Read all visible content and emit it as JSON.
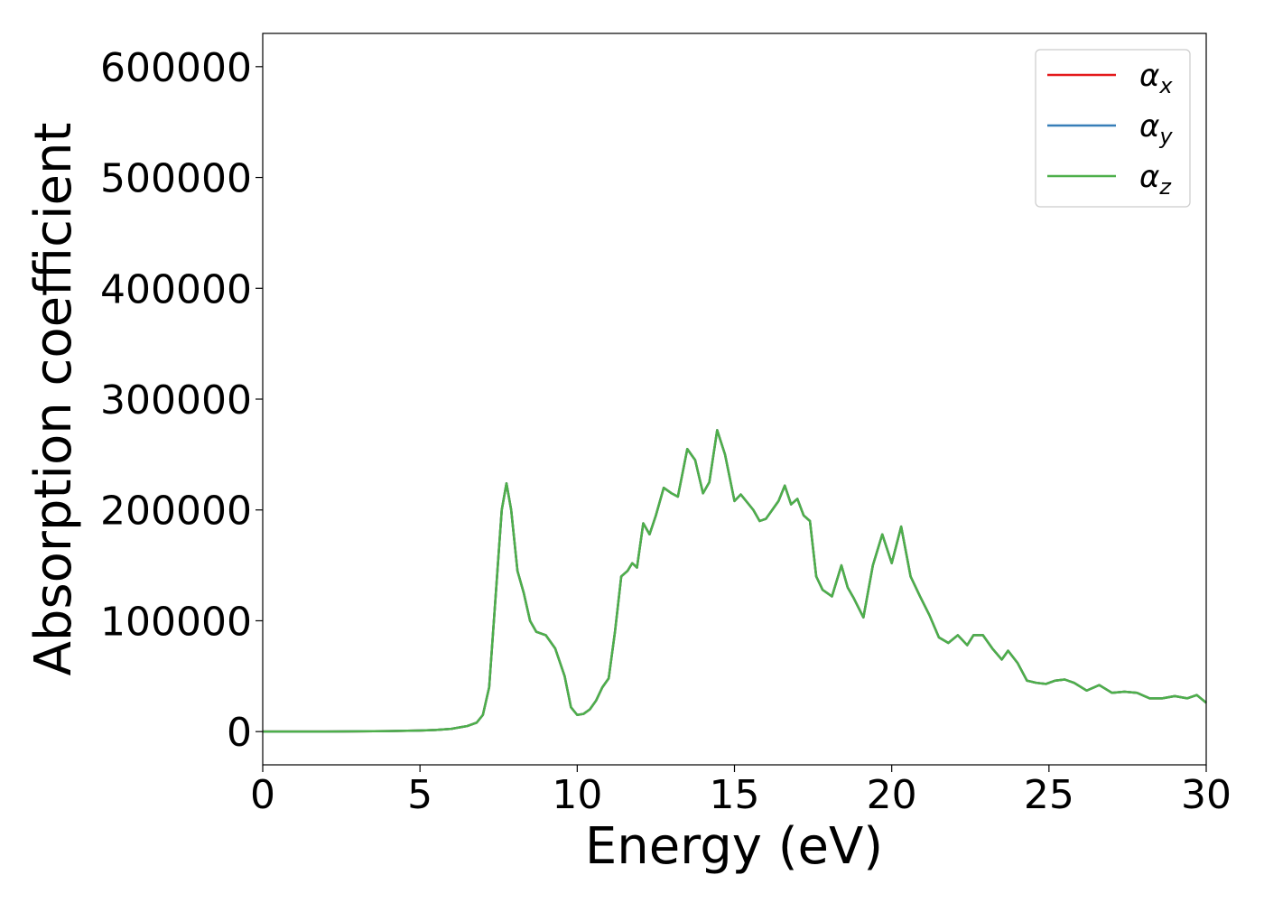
{
  "chart_data": {
    "type": "line",
    "title": "",
    "xlabel": "Energy (eV)",
    "ylabel": "Absorption coefficient",
    "xlim": [
      0,
      30
    ],
    "ylim": [
      -30000,
      630000
    ],
    "xticks": [
      0,
      5,
      10,
      15,
      20,
      25,
      30
    ],
    "xtick_labels": [
      "0",
      "5",
      "10",
      "15",
      "20",
      "25",
      "30"
    ],
    "yticks": [
      0,
      100000,
      200000,
      300000,
      400000,
      500000,
      600000
    ],
    "ytick_labels": [
      "0",
      "100000",
      "200000",
      "300000",
      "400000",
      "500000",
      "600000"
    ],
    "grid": false,
    "legend_position": "top-right",
    "series": [
      {
        "name": "α_x",
        "legend_main": "α",
        "legend_sub": "x",
        "color": "#e41a1c",
        "points": [
          [
            0,
            0
          ],
          [
            2,
            0
          ],
          [
            4,
            500
          ],
          [
            5,
            1000
          ],
          [
            5.5,
            1500
          ],
          [
            6,
            2500
          ],
          [
            6.5,
            5000
          ],
          [
            6.8,
            8000
          ],
          [
            7,
            15000
          ],
          [
            7.2,
            40000
          ],
          [
            7.4,
            120000
          ],
          [
            7.6,
            200000
          ],
          [
            7.75,
            224000
          ],
          [
            7.9,
            200000
          ],
          [
            8.1,
            145000
          ],
          [
            8.3,
            125000
          ],
          [
            8.5,
            100000
          ],
          [
            8.7,
            90000
          ],
          [
            9,
            87000
          ],
          [
            9.3,
            75000
          ],
          [
            9.6,
            50000
          ],
          [
            9.8,
            22000
          ],
          [
            10,
            15000
          ],
          [
            10.2,
            16000
          ],
          [
            10.4,
            20000
          ],
          [
            10.6,
            28000
          ],
          [
            10.8,
            40000
          ],
          [
            11,
            48000
          ],
          [
            11.2,
            90000
          ],
          [
            11.4,
            140000
          ],
          [
            11.6,
            145000
          ],
          [
            11.75,
            152000
          ],
          [
            11.9,
            148000
          ],
          [
            12.1,
            188000
          ],
          [
            12.3,
            178000
          ],
          [
            12.5,
            195000
          ],
          [
            12.75,
            220000
          ],
          [
            13,
            215000
          ],
          [
            13.2,
            212000
          ],
          [
            13.5,
            255000
          ],
          [
            13.75,
            245000
          ],
          [
            14,
            215000
          ],
          [
            14.2,
            225000
          ],
          [
            14.45,
            272000
          ],
          [
            14.7,
            250000
          ],
          [
            15,
            208000
          ],
          [
            15.2,
            214000
          ],
          [
            15.4,
            207000
          ],
          [
            15.6,
            200000
          ],
          [
            15.8,
            190000
          ],
          [
            16,
            192000
          ],
          [
            16.2,
            200000
          ],
          [
            16.4,
            208000
          ],
          [
            16.6,
            222000
          ],
          [
            16.8,
            205000
          ],
          [
            17,
            210000
          ],
          [
            17.2,
            195000
          ],
          [
            17.4,
            190000
          ],
          [
            17.6,
            140000
          ],
          [
            17.8,
            128000
          ],
          [
            18.1,
            122000
          ],
          [
            18.4,
            150000
          ],
          [
            18.6,
            130000
          ],
          [
            18.8,
            120000
          ],
          [
            19.1,
            103000
          ],
          [
            19.4,
            150000
          ],
          [
            19.7,
            178000
          ],
          [
            20,
            152000
          ],
          [
            20.3,
            185000
          ],
          [
            20.6,
            140000
          ],
          [
            20.9,
            122000
          ],
          [
            21.2,
            105000
          ],
          [
            21.5,
            85000
          ],
          [
            21.8,
            80000
          ],
          [
            22.1,
            87000
          ],
          [
            22.4,
            78000
          ],
          [
            22.6,
            87000
          ],
          [
            22.9,
            87000
          ],
          [
            23.2,
            75000
          ],
          [
            23.5,
            65000
          ],
          [
            23.7,
            73000
          ],
          [
            24,
            62000
          ],
          [
            24.3,
            46000
          ],
          [
            24.6,
            44000
          ],
          [
            24.9,
            43000
          ],
          [
            25.2,
            46000
          ],
          [
            25.5,
            47000
          ],
          [
            25.8,
            44000
          ],
          [
            26.2,
            37000
          ],
          [
            26.6,
            42000
          ],
          [
            27,
            35000
          ],
          [
            27.4,
            36000
          ],
          [
            27.8,
            35000
          ],
          [
            28.2,
            30000
          ],
          [
            28.6,
            30000
          ],
          [
            29,
            32000
          ],
          [
            29.4,
            30000
          ],
          [
            29.7,
            33000
          ],
          [
            30,
            26000
          ]
        ]
      },
      {
        "name": "α_y",
        "legend_main": "α",
        "legend_sub": "y",
        "color": "#377eb8",
        "points": [
          [
            0,
            0
          ],
          [
            2,
            0
          ],
          [
            4,
            500
          ],
          [
            5,
            1000
          ],
          [
            5.5,
            1500
          ],
          [
            6,
            2500
          ],
          [
            6.5,
            5000
          ],
          [
            6.8,
            8000
          ],
          [
            7,
            15000
          ],
          [
            7.2,
            40000
          ],
          [
            7.4,
            120000
          ],
          [
            7.6,
            200000
          ],
          [
            7.75,
            224000
          ],
          [
            7.9,
            200000
          ],
          [
            8.1,
            145000
          ],
          [
            8.3,
            125000
          ],
          [
            8.5,
            100000
          ],
          [
            8.7,
            90000
          ],
          [
            9,
            87000
          ],
          [
            9.3,
            75000
          ],
          [
            9.6,
            50000
          ],
          [
            9.8,
            22000
          ],
          [
            10,
            15000
          ],
          [
            10.2,
            16000
          ],
          [
            10.4,
            20000
          ],
          [
            10.6,
            28000
          ],
          [
            10.8,
            40000
          ],
          [
            11,
            48000
          ],
          [
            11.2,
            90000
          ],
          [
            11.4,
            140000
          ],
          [
            11.6,
            145000
          ],
          [
            11.75,
            152000
          ],
          [
            11.9,
            148000
          ],
          [
            12.1,
            188000
          ],
          [
            12.3,
            178000
          ],
          [
            12.5,
            195000
          ],
          [
            12.75,
            220000
          ],
          [
            13,
            215000
          ],
          [
            13.2,
            212000
          ],
          [
            13.5,
            255000
          ],
          [
            13.75,
            245000
          ],
          [
            14,
            215000
          ],
          [
            14.2,
            225000
          ],
          [
            14.45,
            272000
          ],
          [
            14.7,
            250000
          ],
          [
            15,
            208000
          ],
          [
            15.2,
            214000
          ],
          [
            15.4,
            207000
          ],
          [
            15.6,
            200000
          ],
          [
            15.8,
            190000
          ],
          [
            16,
            192000
          ],
          [
            16.2,
            200000
          ],
          [
            16.4,
            208000
          ],
          [
            16.6,
            222000
          ],
          [
            16.8,
            205000
          ],
          [
            17,
            210000
          ],
          [
            17.2,
            195000
          ],
          [
            17.4,
            190000
          ],
          [
            17.6,
            140000
          ],
          [
            17.8,
            128000
          ],
          [
            18.1,
            122000
          ],
          [
            18.4,
            150000
          ],
          [
            18.6,
            130000
          ],
          [
            18.8,
            120000
          ],
          [
            19.1,
            103000
          ],
          [
            19.4,
            150000
          ],
          [
            19.7,
            178000
          ],
          [
            20,
            152000
          ],
          [
            20.3,
            185000
          ],
          [
            20.6,
            140000
          ],
          [
            20.9,
            122000
          ],
          [
            21.2,
            105000
          ],
          [
            21.5,
            85000
          ],
          [
            21.8,
            80000
          ],
          [
            22.1,
            87000
          ],
          [
            22.4,
            78000
          ],
          [
            22.6,
            87000
          ],
          [
            22.9,
            87000
          ],
          [
            23.2,
            75000
          ],
          [
            23.5,
            65000
          ],
          [
            23.7,
            73000
          ],
          [
            24,
            62000
          ],
          [
            24.3,
            46000
          ],
          [
            24.6,
            44000
          ],
          [
            24.9,
            43000
          ],
          [
            25.2,
            46000
          ],
          [
            25.5,
            47000
          ],
          [
            25.8,
            44000
          ],
          [
            26.2,
            37000
          ],
          [
            26.6,
            42000
          ],
          [
            27,
            35000
          ],
          [
            27.4,
            36000
          ],
          [
            27.8,
            35000
          ],
          [
            28.2,
            30000
          ],
          [
            28.6,
            30000
          ],
          [
            29,
            32000
          ],
          [
            29.4,
            30000
          ],
          [
            29.7,
            33000
          ],
          [
            30,
            26000
          ]
        ]
      },
      {
        "name": "α_z",
        "legend_main": "α",
        "legend_sub": "z",
        "color": "#4daf4a",
        "points": [
          [
            0,
            0
          ],
          [
            2,
            0
          ],
          [
            4,
            500
          ],
          [
            5,
            1000
          ],
          [
            5.5,
            1500
          ],
          [
            6,
            2500
          ],
          [
            6.5,
            5000
          ],
          [
            6.8,
            8000
          ],
          [
            7,
            15000
          ],
          [
            7.2,
            40000
          ],
          [
            7.4,
            120000
          ],
          [
            7.6,
            200000
          ],
          [
            7.75,
            224000
          ],
          [
            7.9,
            200000
          ],
          [
            8.1,
            145000
          ],
          [
            8.3,
            125000
          ],
          [
            8.5,
            100000
          ],
          [
            8.7,
            90000
          ],
          [
            9,
            87000
          ],
          [
            9.3,
            75000
          ],
          [
            9.6,
            50000
          ],
          [
            9.8,
            22000
          ],
          [
            10,
            15000
          ],
          [
            10.2,
            16000
          ],
          [
            10.4,
            20000
          ],
          [
            10.6,
            28000
          ],
          [
            10.8,
            40000
          ],
          [
            11,
            48000
          ],
          [
            11.2,
            90000
          ],
          [
            11.4,
            140000
          ],
          [
            11.6,
            145000
          ],
          [
            11.75,
            152000
          ],
          [
            11.9,
            148000
          ],
          [
            12.1,
            188000
          ],
          [
            12.3,
            178000
          ],
          [
            12.5,
            195000
          ],
          [
            12.75,
            220000
          ],
          [
            13,
            215000
          ],
          [
            13.2,
            212000
          ],
          [
            13.5,
            255000
          ],
          [
            13.75,
            245000
          ],
          [
            14,
            215000
          ],
          [
            14.2,
            225000
          ],
          [
            14.45,
            272000
          ],
          [
            14.7,
            250000
          ],
          [
            15,
            208000
          ],
          [
            15.2,
            214000
          ],
          [
            15.4,
            207000
          ],
          [
            15.6,
            200000
          ],
          [
            15.8,
            190000
          ],
          [
            16,
            192000
          ],
          [
            16.2,
            200000
          ],
          [
            16.4,
            208000
          ],
          [
            16.6,
            222000
          ],
          [
            16.8,
            205000
          ],
          [
            17,
            210000
          ],
          [
            17.2,
            195000
          ],
          [
            17.4,
            190000
          ],
          [
            17.6,
            140000
          ],
          [
            17.8,
            128000
          ],
          [
            18.1,
            122000
          ],
          [
            18.4,
            150000
          ],
          [
            18.6,
            130000
          ],
          [
            18.8,
            120000
          ],
          [
            19.1,
            103000
          ],
          [
            19.4,
            150000
          ],
          [
            19.7,
            178000
          ],
          [
            20,
            152000
          ],
          [
            20.3,
            185000
          ],
          [
            20.6,
            140000
          ],
          [
            20.9,
            122000
          ],
          [
            21.2,
            105000
          ],
          [
            21.5,
            85000
          ],
          [
            21.8,
            80000
          ],
          [
            22.1,
            87000
          ],
          [
            22.4,
            78000
          ],
          [
            22.6,
            87000
          ],
          [
            22.9,
            87000
          ],
          [
            23.2,
            75000
          ],
          [
            23.5,
            65000
          ],
          [
            23.7,
            73000
          ],
          [
            24,
            62000
          ],
          [
            24.3,
            46000
          ],
          [
            24.6,
            44000
          ],
          [
            24.9,
            43000
          ],
          [
            25.2,
            46000
          ],
          [
            25.5,
            47000
          ],
          [
            25.8,
            44000
          ],
          [
            26.2,
            37000
          ],
          [
            26.6,
            42000
          ],
          [
            27,
            35000
          ],
          [
            27.4,
            36000
          ],
          [
            27.8,
            35000
          ],
          [
            28.2,
            30000
          ],
          [
            28.6,
            30000
          ],
          [
            29,
            32000
          ],
          [
            29.4,
            30000
          ],
          [
            29.7,
            33000
          ],
          [
            30,
            26000
          ]
        ]
      }
    ]
  }
}
